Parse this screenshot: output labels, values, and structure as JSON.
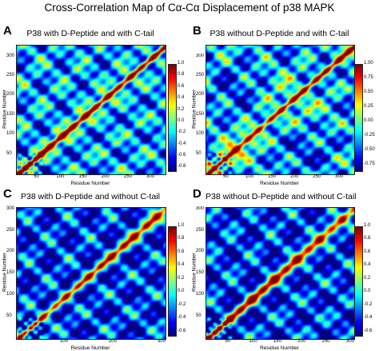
{
  "figure_title": "Cross-Correlation Map of Cα-Cα Displacement of p38 MAPK",
  "chart_data": [
    {
      "type": "heatmap",
      "letter": "A",
      "title": "P38 with D-Peptide and with C-tail",
      "xlabel": "Residue Number",
      "ylabel": "Residue Number",
      "xlim": [
        1,
        330
      ],
      "ylim": [
        1,
        330
      ],
      "xticks": [
        "50",
        "100",
        "150",
        "200",
        "250",
        "300"
      ],
      "yticks": [
        "50",
        "100",
        "150",
        "200",
        "250",
        "300"
      ],
      "colorbar": {
        "min": -0.85,
        "max": 1.0,
        "ticks": [
          "1.0",
          "0.8",
          "0.6",
          "0.4",
          "0.2",
          "0.0",
          "-0.2",
          "-0.4",
          "-0.6",
          "-0.8"
        ],
        "colormap": "jet"
      }
    },
    {
      "type": "heatmap",
      "letter": "B",
      "title": "P38 without D-Peptide and with C-tail",
      "xlabel": "Residue Number",
      "ylabel": "Residue Number",
      "xlim": [
        1,
        330
      ],
      "ylim": [
        1,
        330
      ],
      "xticks": [
        "50",
        "100",
        "150",
        "200",
        "250",
        "300"
      ],
      "yticks": [
        "50",
        "100",
        "150",
        "200",
        "250",
        "300"
      ],
      "colorbar": {
        "min": -0.85,
        "max": 1.0,
        "ticks": [
          "1.00",
          "0.75",
          "0.50",
          "0.25",
          "0.00",
          "-0.25",
          "-0.50",
          "-0.75"
        ],
        "colormap": "jet"
      }
    },
    {
      "type": "heatmap",
      "letter": "C",
      "title": "P38 with D-Peptide and without C-tail",
      "xlabel": "Residue Number",
      "ylabel": "Residue Number",
      "xlim": [
        1,
        305
      ],
      "ylim": [
        1,
        305
      ],
      "xticks": [
        "100",
        "200",
        "300"
      ],
      "yticks": [
        "50",
        "100",
        "150",
        "200",
        "250",
        "300"
      ],
      "colorbar": {
        "min": -0.65,
        "max": 1.0,
        "ticks": [
          "1.0",
          "0.8",
          "0.6",
          "0.4",
          "0.2",
          "0.0",
          "-0.2",
          "-0.4",
          "-0.6"
        ],
        "colormap": "jet"
      }
    },
    {
      "type": "heatmap",
      "letter": "D",
      "title": "P38 without D-Peptide and without C-tail",
      "xlabel": "Residue Number",
      "ylabel": "Residue Number",
      "xlim": [
        1,
        305
      ],
      "ylim": [
        1,
        305
      ],
      "xticks": [
        "50",
        "100",
        "150",
        "200",
        "250",
        "300"
      ],
      "yticks": [
        "50",
        "100",
        "150",
        "200",
        "250",
        "300"
      ],
      "colorbar": {
        "min": -0.65,
        "max": 1.0,
        "ticks": [
          "1.0",
          "0.8",
          "0.6",
          "0.4",
          "0.2",
          "0.0",
          "-0.2",
          "-0.4",
          "-0.6"
        ],
        "colormap": "jet"
      }
    }
  ]
}
